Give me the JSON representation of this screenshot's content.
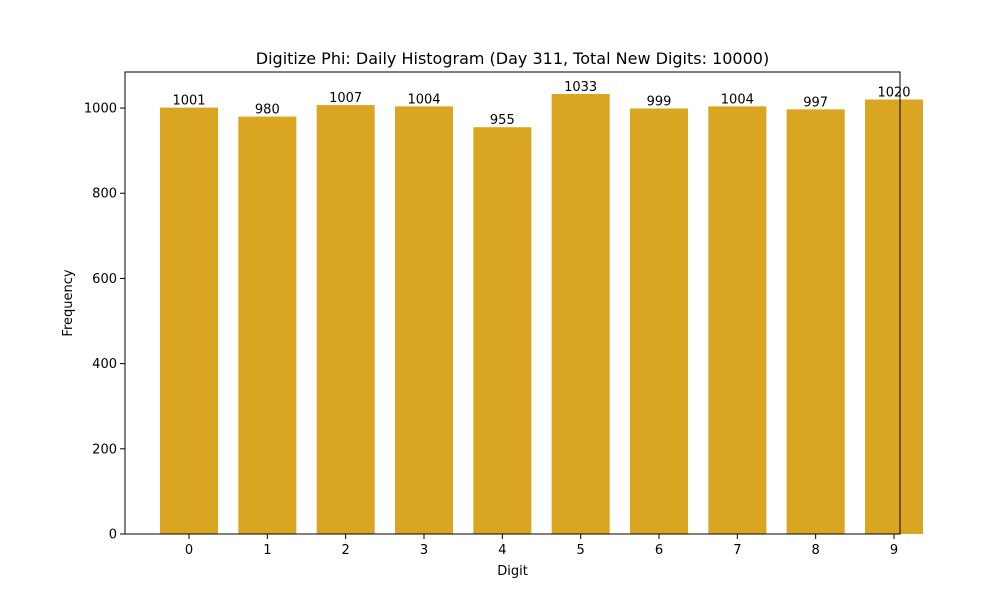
{
  "chart_data": {
    "type": "bar",
    "title": "Digitize Phi: Daily Histogram (Day 311, Total New Digits: 10000)",
    "xlabel": "Digit",
    "ylabel": "Frequency",
    "categories": [
      "0",
      "1",
      "2",
      "3",
      "4",
      "5",
      "6",
      "7",
      "8",
      "9"
    ],
    "values": [
      1001,
      980,
      1007,
      1004,
      955,
      1033,
      999,
      1004,
      997,
      1020
    ],
    "data_labels": [
      "1001",
      "980",
      "1007",
      "1004",
      "955",
      "1033",
      "999",
      "1004",
      "997",
      "1020"
    ],
    "yticks": [
      0,
      200,
      400,
      600,
      800,
      1000
    ],
    "ytick_labels": [
      "0",
      "200",
      "400",
      "600",
      "800",
      "1000"
    ],
    "ylim": [
      0,
      1084.65
    ],
    "bar_color": "#DAA520",
    "grid": false
  }
}
